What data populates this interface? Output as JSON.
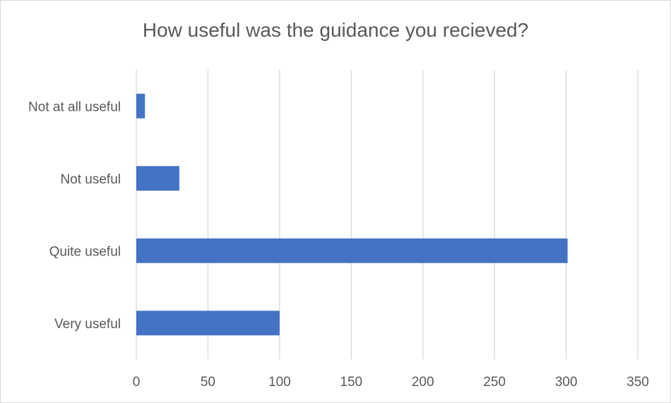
{
  "chart_data": {
    "type": "bar",
    "orientation": "horizontal",
    "title": "How useful was the guidance you recieved?",
    "categories": [
      "Very useful",
      "Quite useful",
      "Not useful",
      "Not at all useful"
    ],
    "values": [
      100,
      301,
      30,
      6
    ],
    "xlim": [
      0,
      350
    ],
    "x_ticks": [
      0,
      50,
      100,
      150,
      200,
      250,
      300,
      350
    ],
    "xlabel": "",
    "ylabel": "",
    "grid": "vertical",
    "legend": "none",
    "bar_color": "#4472C4",
    "grid_color": "#d9d9d9"
  }
}
